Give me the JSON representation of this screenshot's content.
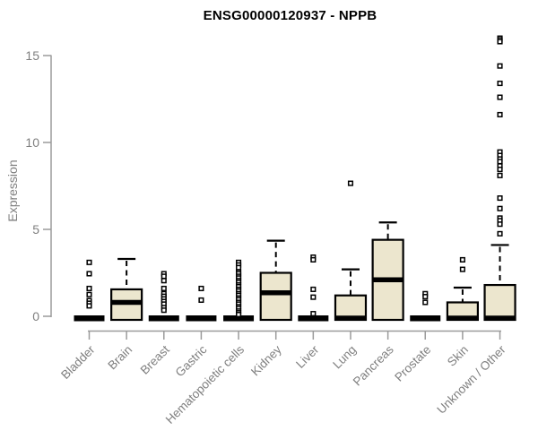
{
  "chart_data": {
    "type": "boxplot",
    "title": "ENSG00000120937 - NPPB",
    "ylabel": "Expression",
    "yticks": [
      0,
      5,
      10,
      15
    ],
    "ylim": [
      0,
      16.3
    ],
    "grid": false,
    "legend": "none",
    "colors": {
      "box_fill": "#ECE6CE",
      "box_stroke": "#000000",
      "median": "#000000",
      "outlier": "#000000",
      "axis": "#9b9b9b",
      "tick_label": "#7f7f7f",
      "title": "#000000"
    },
    "categories": [
      "Bladder",
      "Brain",
      "Breast",
      "Gastric",
      "Hematopoietic cells",
      "Kidney",
      "Liver",
      "Lung",
      "Pancreas",
      "Prostate",
      "Skin",
      "Unknown / Other"
    ],
    "boxes": [
      {
        "category": "Bladder",
        "collapsed": true,
        "q1": 0,
        "median": 0,
        "q3": 0,
        "whisker_low": 0,
        "whisker_high": 0,
        "outliers": [
          3.1,
          2.45,
          1.6,
          1.25,
          0.9,
          0.75,
          0.6
        ]
      },
      {
        "category": "Brain",
        "collapsed": false,
        "q1": 0,
        "median": 0.8,
        "q3": 1.55,
        "whisker_low": 0,
        "whisker_high": 3.3,
        "outliers": []
      },
      {
        "category": "Breast",
        "collapsed": true,
        "q1": 0,
        "median": 0,
        "q3": 0,
        "whisker_low": 0,
        "whisker_high": 0,
        "outliers": [
          2.45,
          2.3,
          2.05,
          1.6,
          1.3,
          1.15,
          1.0,
          0.85,
          0.7,
          0.5,
          0.35
        ]
      },
      {
        "category": "Gastric",
        "collapsed": true,
        "q1": 0,
        "median": 0,
        "q3": 0,
        "whisker_low": 0,
        "whisker_high": 0,
        "outliers": [
          1.6,
          0.93
        ]
      },
      {
        "category": "Hematopoietic cells",
        "collapsed": true,
        "q1": 0,
        "median": 0,
        "q3": 0,
        "whisker_low": 0,
        "whisker_high": 0,
        "outliers": [
          3.1,
          2.95,
          2.8,
          2.55,
          2.45,
          2.3,
          2.2,
          2.05,
          1.95,
          1.8,
          1.7,
          1.55,
          1.45,
          1.3,
          1.2,
          1.05,
          0.95,
          0.8,
          0.7,
          0.55,
          0.45,
          0.3,
          0.2,
          0.1
        ]
      },
      {
        "category": "Kidney",
        "collapsed": false,
        "q1": 0.03,
        "median": 1.35,
        "q3": 2.5,
        "whisker_low": 0,
        "whisker_high": 4.35,
        "outliers": []
      },
      {
        "category": "Liver",
        "collapsed": true,
        "q1": 0,
        "median": 0,
        "q3": 0,
        "whisker_low": 0,
        "whisker_high": 0,
        "outliers": [
          3.4,
          3.25,
          1.55,
          1.1,
          0.15
        ]
      },
      {
        "category": "Lung",
        "collapsed": false,
        "q1": 0,
        "median": 0.07,
        "q3": 1.2,
        "whisker_low": 0,
        "whisker_high": 2.7,
        "outliers": [
          7.65
        ]
      },
      {
        "category": "Pancreas",
        "collapsed": false,
        "q1": 0.02,
        "median": 2.1,
        "q3": 4.4,
        "whisker_low": 0,
        "whisker_high": 5.4,
        "outliers": []
      },
      {
        "category": "Prostate",
        "collapsed": true,
        "q1": 0,
        "median": 0,
        "q3": 0,
        "whisker_low": 0,
        "whisker_high": 0,
        "outliers": [
          1.3,
          1.13,
          0.8
        ]
      },
      {
        "category": "Skin",
        "collapsed": false,
        "q1": 0,
        "median": 0.07,
        "q3": 0.8,
        "whisker_low": 0,
        "whisker_high": 1.65,
        "outliers": [
          3.25,
          2.7
        ]
      },
      {
        "category": "Unknown / Other",
        "collapsed": false,
        "q1": 0,
        "median": 0.06,
        "q3": 1.8,
        "whisker_low": 0,
        "whisker_high": 4.1,
        "outliers": [
          16.0,
          15.9,
          15.8,
          14.4,
          13.4,
          12.6,
          11.6,
          9.45,
          9.25,
          9.05,
          8.9,
          8.65,
          8.45,
          8.1,
          6.8,
          6.2,
          5.65,
          5.5,
          5.3,
          4.75
        ]
      }
    ]
  }
}
